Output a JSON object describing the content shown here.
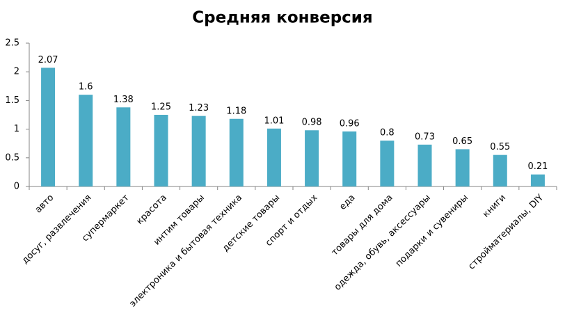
{
  "chart_data": {
    "type": "bar",
    "title": "Средняя конверсия",
    "categories": [
      "авто",
      "досуг, развлечения",
      "супермаркет",
      "красота",
      "интим товары",
      "электроника и бытовая техника",
      "детские товары",
      "спорт и отдых",
      "еда",
      "товары для дома",
      "одежда, обувь, аксессуары",
      "подарки и сувениры",
      "книги",
      "стройматериалы, DIY"
    ],
    "values": [
      2.07,
      1.6,
      1.38,
      1.25,
      1.23,
      1.18,
      1.01,
      0.98,
      0.96,
      0.8,
      0.73,
      0.65,
      0.55,
      0.21
    ],
    "color": "#4bacc6",
    "ylim": [
      0,
      2.5
    ],
    "yticks": [
      0,
      0.5,
      1,
      1.5,
      2,
      2.5
    ],
    "grid": false
  }
}
